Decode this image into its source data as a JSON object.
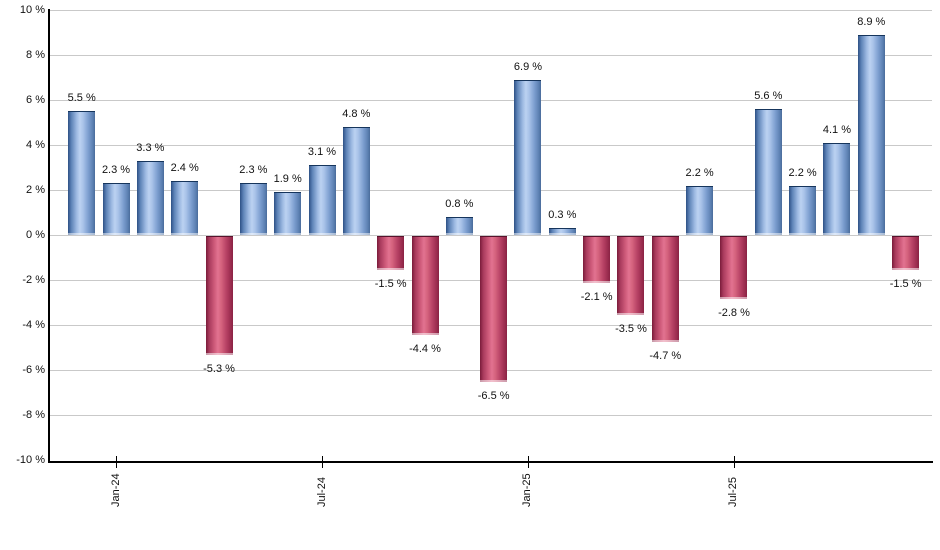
{
  "chart": {
    "background": "#ffffff",
    "grid_color": "#c9c9c9",
    "axis_color": "#000000",
    "label_color": "#111111"
  },
  "chart_data": {
    "type": "bar",
    "title": "",
    "xlabel": "",
    "ylabel": "",
    "unit": "%",
    "ylim": [
      -10,
      10
    ],
    "grid": true,
    "legend_position": "none",
    "y_tick_values": [
      10,
      8,
      6,
      4,
      2,
      0,
      -2,
      -4,
      -6,
      -8,
      -10
    ],
    "y_tick_labels": [
      "10 %",
      "8 %",
      "6 %",
      "4 %",
      "2 %",
      "0 %",
      "-2 %",
      "-4 %",
      "-6 %",
      "-8 %",
      "-10 %"
    ],
    "values": [
      5.5,
      2.3,
      3.3,
      2.4,
      -5.3,
      2.3,
      1.9,
      3.1,
      4.8,
      -1.5,
      -4.4,
      0.8,
      -6.5,
      6.9,
      0.3,
      -2.1,
      -3.5,
      -4.7,
      2.2,
      -2.8,
      5.6,
      2.2,
      4.1,
      8.9,
      -1.5
    ],
    "bar_labels": [
      "5.5 %",
      "2.3 %",
      "3.3 %",
      "2.4 %",
      "-5.3 %",
      "2.3 %",
      "1.9 %",
      "3.1 %",
      "4.8 %",
      "-1.5 %",
      "-4.4 %",
      "0.8 %",
      "-6.5 %",
      "6.9 %",
      "0.3 %",
      "-2.1 %",
      "-3.5 %",
      "-4.7 %",
      "2.2 %",
      "-2.8 %",
      "5.6 %",
      "2.2 %",
      "4.1 %",
      "8.9 %",
      "-1.5 %"
    ],
    "x_ticks": [
      {
        "bar_index": 1,
        "label": "Jan-24"
      },
      {
        "bar_index": 7,
        "label": "Jul-24"
      },
      {
        "bar_index": 13,
        "label": "Jan-25"
      },
      {
        "bar_index": 19,
        "label": "Jul-25"
      }
    ],
    "colors": {
      "positive": "#6f95c9",
      "negative": "#c04a6a"
    },
    "bar_gradients": {
      "positive": [
        [
          0,
          "#2d5085"
        ],
        [
          0.12,
          "#5c82b6"
        ],
        [
          0.32,
          "#9db9e2"
        ],
        [
          0.44,
          "#bcd2f1"
        ],
        [
          0.56,
          "#a9c3e9"
        ],
        [
          0.75,
          "#7d9fd0"
        ],
        [
          0.92,
          "#5c80b2"
        ],
        [
          1,
          "#4a6b9a"
        ]
      ],
      "negative": [
        [
          0,
          "#7a1b3a"
        ],
        [
          0.12,
          "#a83a5c"
        ],
        [
          0.32,
          "#d05c7c"
        ],
        [
          0.44,
          "#e27290"
        ],
        [
          0.56,
          "#d6647f"
        ],
        [
          0.75,
          "#b84265"
        ],
        [
          0.92,
          "#9a2c4e"
        ],
        [
          1,
          "#8a2244"
        ]
      ]
    }
  }
}
